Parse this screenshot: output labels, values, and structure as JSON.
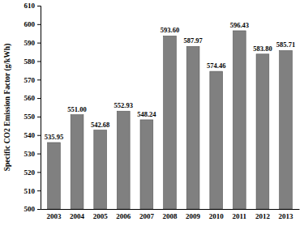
{
  "chart_data": {
    "type": "bar",
    "y_label": "Specific CO2 Emission Factor (g/kWh)",
    "categories": [
      "2003",
      "2004",
      "2005",
      "2006",
      "2007",
      "2008",
      "2009",
      "2010",
      "2011",
      "2012",
      "2013"
    ],
    "values": [
      535.95,
      551.0,
      542.68,
      552.93,
      548.24,
      593.6,
      587.97,
      574.46,
      596.43,
      583.8,
      585.71
    ],
    "value_labels": [
      "535.95",
      "551.00",
      "542.68",
      "552.93",
      "548.24",
      "593.60",
      "587.97",
      "574.46",
      "596.43",
      "583.80",
      "585.71"
    ],
    "color": "#808080",
    "ylim": [
      500,
      610
    ],
    "yticks": [
      500,
      510,
      520,
      530,
      540,
      550,
      560,
      570,
      580,
      590,
      600,
      610
    ],
    "grid": false,
    "data_labels": true
  }
}
